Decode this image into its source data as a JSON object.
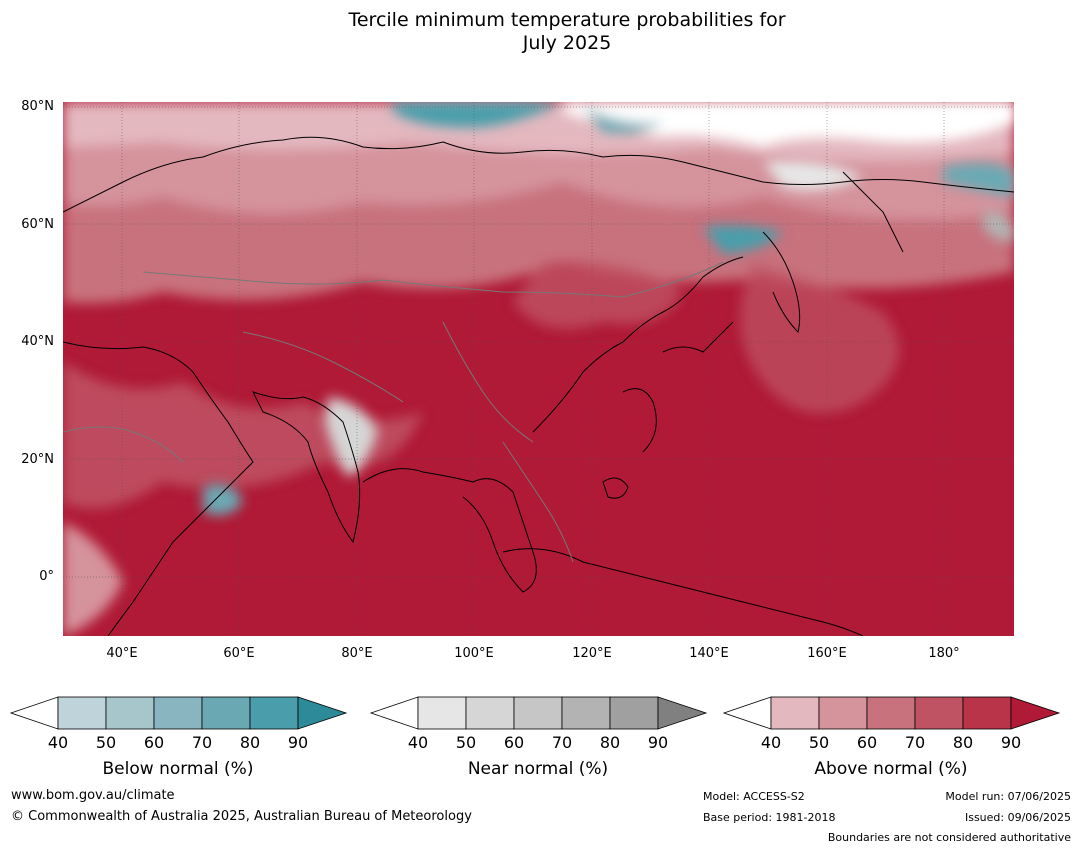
{
  "title_line1": "Tercile minimum temperature probabilities for",
  "title_line2": "July 2025",
  "map": {
    "lat_labels": [
      "80°N",
      "60°N",
      "40°N",
      "20°N",
      "0°"
    ],
    "lon_labels": [
      "40°E",
      "60°E",
      "80°E",
      "100°E",
      "120°E",
      "140°E",
      "160°E",
      "180°"
    ],
    "extent": {
      "lon_min": 30,
      "lon_max": 192,
      "lat_min": -10,
      "lat_max": 81
    }
  },
  "colorbars": [
    {
      "title": "Below normal (%)",
      "ticks": [
        "40",
        "50",
        "60",
        "70",
        "80",
        "90"
      ],
      "colors": [
        "#ffffff",
        "#bfd3da",
        "#a6c6cc",
        "#88b5c0",
        "#6aa9b4",
        "#4a9eab",
        "#2d8a98"
      ]
    },
    {
      "title": "Near normal (%)",
      "ticks": [
        "40",
        "50",
        "60",
        "70",
        "80",
        "90"
      ],
      "colors": [
        "#ffffff",
        "#e6e6e6",
        "#d6d6d6",
        "#c6c6c6",
        "#b3b3b3",
        "#a0a0a0",
        "#808080"
      ]
    },
    {
      "title": "Above normal (%)",
      "ticks": [
        "40",
        "50",
        "60",
        "70",
        "80",
        "90"
      ],
      "colors": [
        "#ffffff",
        "#e4b8bf",
        "#d5939c",
        "#c8727e",
        "#bf5364",
        "#b93449",
        "#b01a36"
      ]
    }
  ],
  "footer": {
    "website": "www.bom.gov.au/climate",
    "copyright": "© Commonwealth of Australia 2025, Australian Bureau of Meteorology",
    "model": "Model: ACCESS-S2",
    "base_period": "Base period: 1981-2018",
    "model_run": "Model run: 07/06/2025",
    "issued": "Issued: 09/06/2025",
    "disclaimer": "Boundaries are not considered authoritative"
  }
}
